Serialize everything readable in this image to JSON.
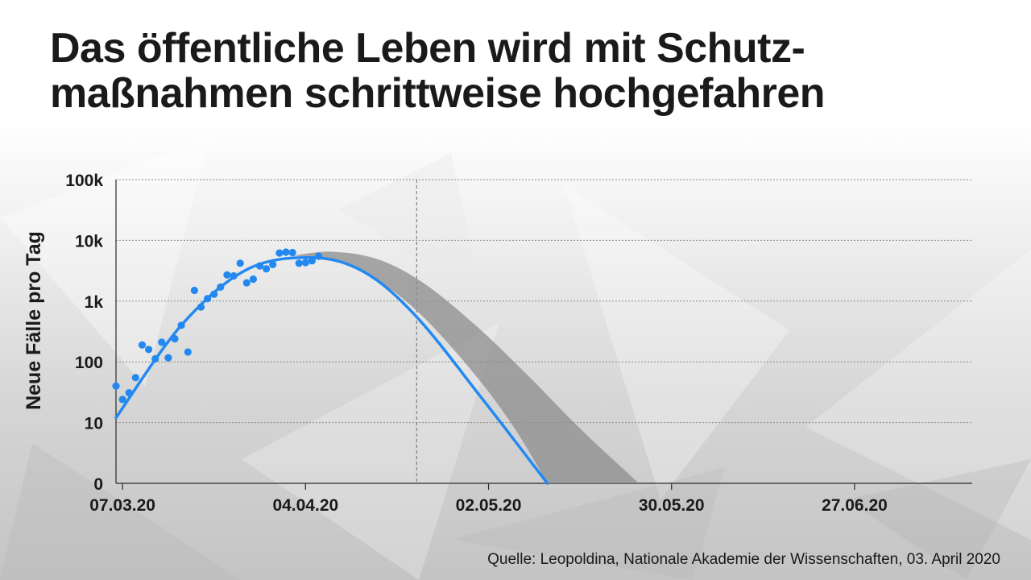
{
  "title": {
    "line1": "Das öffentliche Leben wird mit Schutz-",
    "line2": "maßnahmen schrittweise hochgefahren"
  },
  "source": "Quelle: Leopoldina, Nationale Akademie der Wissenschaften, 03. April 2020",
  "colors": {
    "points": "#2389f0",
    "fit": "#2389f0",
    "band": "#8c8c8c",
    "grid": "#8a8a8a",
    "text": "#1a1a1a"
  },
  "chart_data": {
    "type": "scatter",
    "title": "",
    "ylabel": "Neue Fälle pro Tag",
    "xlabel": "",
    "yscale": "log",
    "yticks": [
      {
        "value": 1,
        "label": "0"
      },
      {
        "value": 10,
        "label": "10"
      },
      {
        "value": 100,
        "label": "100"
      },
      {
        "value": 1000,
        "label": "1k"
      },
      {
        "value": 10000,
        "label": "10k"
      },
      {
        "value": 100000,
        "label": "100k"
      }
    ],
    "ylim": [
      1,
      100000
    ],
    "xlim": [
      "2020-03-06",
      "2020-07-15"
    ],
    "xticks": [
      {
        "date": "2020-03-07",
        "label": "07.03.20"
      },
      {
        "date": "2020-04-04",
        "label": "04.04.20"
      },
      {
        "date": "2020-05-02",
        "label": "02.05.20"
      },
      {
        "date": "2020-05-30",
        "label": "30.05.20"
      },
      {
        "date": "2020-06-27",
        "label": "27.06.20"
      }
    ],
    "grid": "horizontal-dotted",
    "reference_line": {
      "date": "2020-04-21",
      "style": "dashed"
    },
    "series": [
      {
        "kind": "points",
        "points": [
          [
            "2020-03-06",
            40
          ],
          [
            "2020-03-07",
            24
          ],
          [
            "2020-03-08",
            31
          ],
          [
            "2020-03-09",
            55
          ],
          [
            "2020-03-10",
            190
          ],
          [
            "2020-03-11",
            160
          ],
          [
            "2020-03-12",
            112
          ],
          [
            "2020-03-13",
            210
          ],
          [
            "2020-03-14",
            117
          ],
          [
            "2020-03-15",
            240
          ],
          [
            "2020-03-16",
            400
          ],
          [
            "2020-03-17",
            145
          ],
          [
            "2020-03-18",
            1500
          ],
          [
            "2020-03-19",
            800
          ],
          [
            "2020-03-20",
            1100
          ],
          [
            "2020-03-21",
            1300
          ],
          [
            "2020-03-22",
            1700
          ],
          [
            "2020-03-23",
            2700
          ],
          [
            "2020-03-24",
            2600
          ],
          [
            "2020-03-25",
            4200
          ],
          [
            "2020-03-26",
            2000
          ],
          [
            "2020-03-27",
            2300
          ],
          [
            "2020-03-28",
            3800
          ],
          [
            "2020-03-29",
            3400
          ],
          [
            "2020-03-30",
            4000
          ],
          [
            "2020-03-31",
            6200
          ],
          [
            "2020-04-01",
            6400
          ],
          [
            "2020-04-02",
            6300
          ],
          [
            "2020-04-03",
            4200
          ],
          [
            "2020-04-04",
            4300
          ],
          [
            "2020-04-05",
            4600
          ],
          [
            "2020-04-06",
            5500
          ]
        ]
      },
      {
        "kind": "fit-line",
        "points": [
          [
            "2020-03-06",
            12
          ],
          [
            "2020-03-16",
            400
          ],
          [
            "2020-03-26",
            3300
          ],
          [
            "2020-04-05",
            5200
          ],
          [
            "2020-04-13",
            3000
          ],
          [
            "2020-04-21",
            550
          ],
          [
            "2020-05-01",
            25
          ],
          [
            "2020-05-11",
            1
          ]
        ]
      },
      {
        "kind": "band",
        "upper": [
          [
            "2020-04-02",
            5600
          ],
          [
            "2020-04-08",
            6500
          ],
          [
            "2020-04-15",
            4900
          ],
          [
            "2020-04-22",
            2000
          ],
          [
            "2020-04-30",
            400
          ],
          [
            "2020-05-08",
            60
          ],
          [
            "2020-05-16",
            8
          ],
          [
            "2020-05-25",
            1
          ]
        ],
        "lower": [
          [
            "2020-04-02",
            5600
          ],
          [
            "2020-04-08",
            4700
          ],
          [
            "2020-04-15",
            2200
          ],
          [
            "2020-04-22",
            550
          ],
          [
            "2020-04-30",
            60
          ],
          [
            "2020-05-06",
            8
          ],
          [
            "2020-05-11",
            1
          ]
        ]
      }
    ]
  }
}
